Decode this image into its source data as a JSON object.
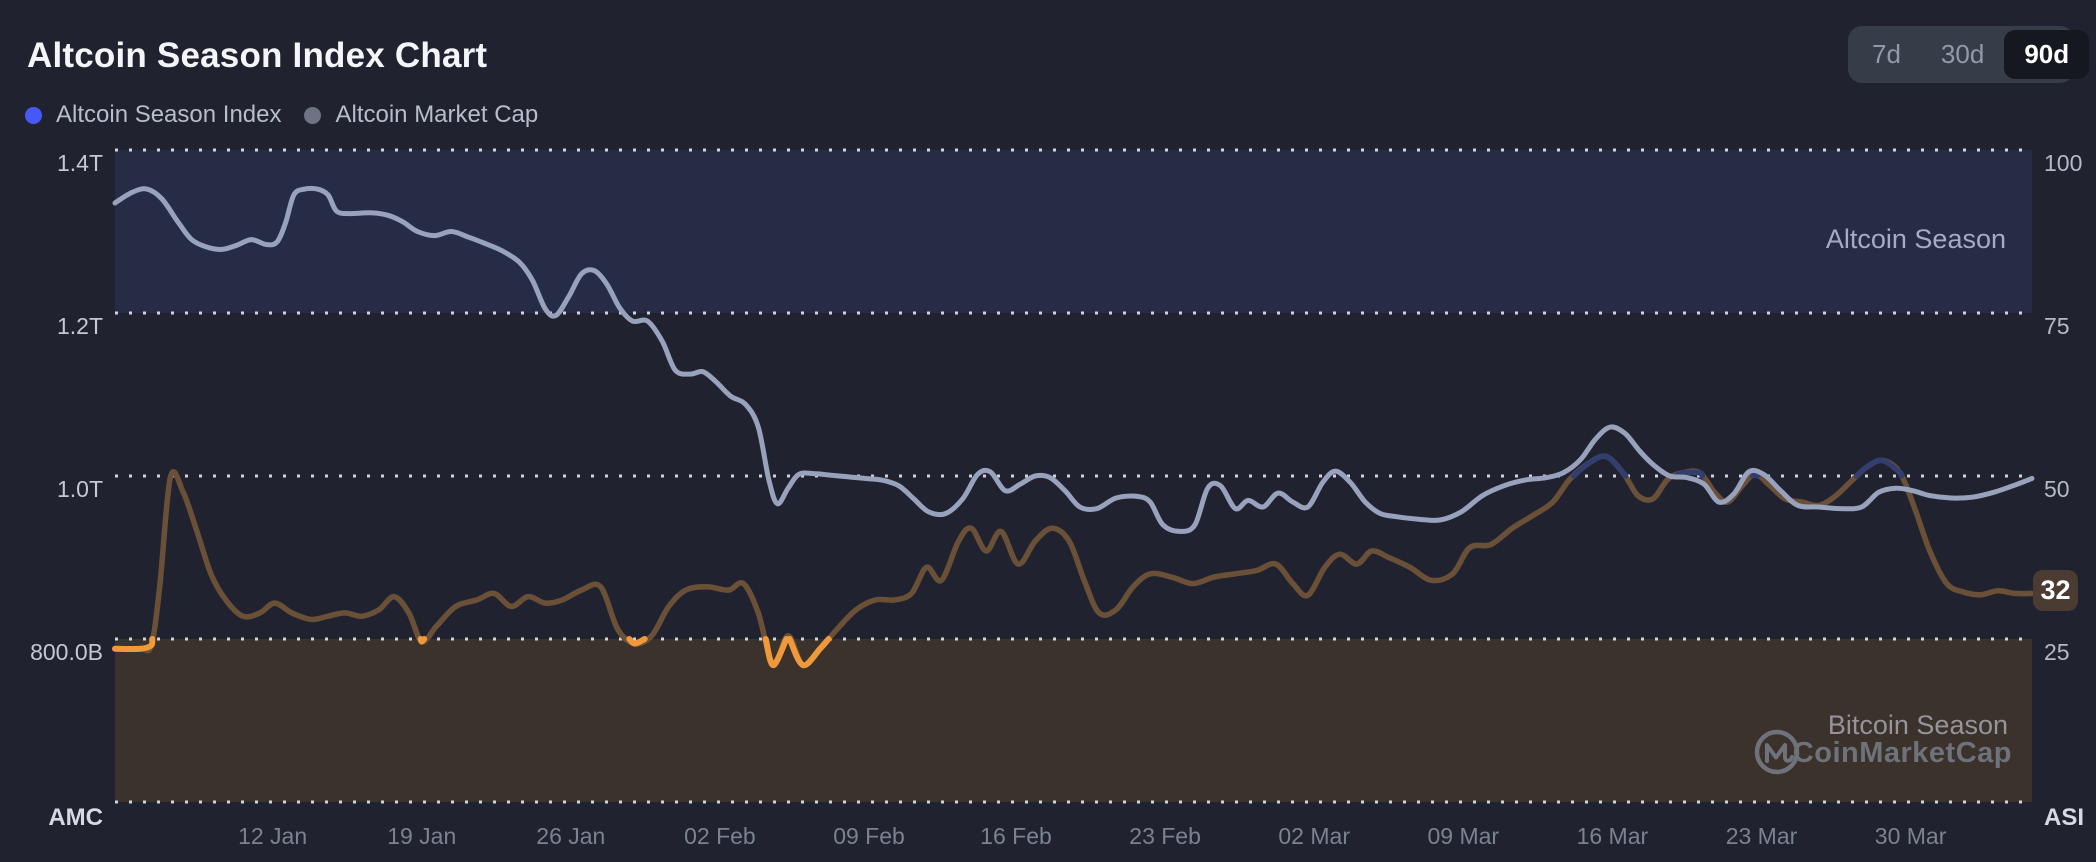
{
  "header": {
    "title": "Altcoin Season Index Chart",
    "ranges": [
      {
        "label": "7d",
        "selected": false
      },
      {
        "label": "30d",
        "selected": false
      },
      {
        "label": "90d",
        "selected": true
      }
    ]
  },
  "legend": [
    {
      "label": "Altcoin Season Index",
      "color": "#4659f7"
    },
    {
      "label": "Altcoin Market Cap",
      "color": "#6c7382"
    }
  ],
  "watermark": {
    "brand": "CoinMarketCap"
  },
  "chart_data": {
    "type": "line",
    "title": "Altcoin Season Index Chart",
    "grid": "horizontal-dotted",
    "legend_position": "top-left",
    "current_value": "32",
    "zones": [
      {
        "label": "Altcoin Season",
        "range": [
          75,
          100
        ],
        "color": "#272c46",
        "label_color": "#a5abc3"
      },
      {
        "label": "Bitcoin Season",
        "range": [
          0,
          25
        ],
        "color": "#3a322b",
        "label_color": "#96939a"
      }
    ],
    "right_axis": {
      "label": "ASI",
      "range": [
        0,
        100
      ],
      "ticks": [
        {
          "value": 100,
          "label": "100"
        },
        {
          "value": 75,
          "label": "75"
        },
        {
          "value": 50,
          "label": "50"
        },
        {
          "value": 25,
          "label": "25"
        }
      ]
    },
    "left_axis": {
      "label": "AMC",
      "unit": "USD",
      "range_trillions": [
        0.6,
        1.4
      ],
      "ticks": [
        {
          "value": 100,
          "label": "1.4T"
        },
        {
          "value": 75,
          "label": "1.2T"
        },
        {
          "value": 50,
          "label": "1.0T"
        },
        {
          "value": 25,
          "label": "800.0B"
        }
      ]
    },
    "x_ticks": [
      {
        "label": "12 Jan",
        "day": 7.4
      },
      {
        "label": "19 Jan",
        "day": 14.4
      },
      {
        "label": "26 Jan",
        "day": 21.4
      },
      {
        "label": "02 Feb",
        "day": 28.4
      },
      {
        "label": "09 Feb",
        "day": 35.4
      },
      {
        "label": "16 Feb",
        "day": 42.3
      },
      {
        "label": "23 Feb",
        "day": 49.3
      },
      {
        "label": "02 Mar",
        "day": 56.3
      },
      {
        "label": "09 Mar",
        "day": 63.3
      },
      {
        "label": "16 Mar",
        "day": 70.3
      },
      {
        "label": "23 Mar",
        "day": 77.3
      },
      {
        "label": "30 Mar",
        "day": 84.3
      }
    ],
    "x_domain_days": 90,
    "series": [
      {
        "name": "Altcoin Season Index",
        "axis": "right",
        "colors": {
          "low": "#f0993c",
          "mid": "#6b5038",
          "high": "#323f6e"
        },
        "thresholds": {
          "low": 25,
          "high": 50
        },
        "points": [
          [
            0,
            23.5
          ],
          [
            1.2,
            23.5
          ],
          [
            1.7,
            24
          ],
          [
            2.1,
            33
          ],
          [
            2.6,
            49.8
          ],
          [
            3.2,
            47.5
          ],
          [
            3.8,
            42
          ],
          [
            4.5,
            35
          ],
          [
            5.2,
            31
          ],
          [
            6,
            28.5
          ],
          [
            6.8,
            29
          ],
          [
            7.5,
            30.5
          ],
          [
            8.3,
            29
          ],
          [
            9.2,
            28
          ],
          [
            10,
            28.5
          ],
          [
            10.8,
            29
          ],
          [
            11.6,
            28.5
          ],
          [
            12.4,
            29.5
          ],
          [
            13.1,
            31.5
          ],
          [
            13.8,
            29
          ],
          [
            14.4,
            24.6
          ],
          [
            15.1,
            27
          ],
          [
            16,
            30
          ],
          [
            17,
            31
          ],
          [
            17.8,
            32
          ],
          [
            18.6,
            30
          ],
          [
            19.4,
            31.5
          ],
          [
            20.2,
            30.5
          ],
          [
            21,
            31
          ],
          [
            21.9,
            32.5
          ],
          [
            22.8,
            33
          ],
          [
            23.6,
            26.5
          ],
          [
            24.4,
            24.3
          ],
          [
            25.2,
            25.5
          ],
          [
            26,
            30
          ],
          [
            26.8,
            32.5
          ],
          [
            27.8,
            33
          ],
          [
            28.8,
            32.5
          ],
          [
            29.5,
            33.5
          ],
          [
            30.2,
            29
          ],
          [
            30.9,
            21
          ],
          [
            31.6,
            25.5
          ],
          [
            32.3,
            21
          ],
          [
            33.1,
            23.5
          ],
          [
            33.9,
            26.5
          ],
          [
            34.8,
            29.5
          ],
          [
            35.7,
            31
          ],
          [
            36.6,
            31
          ],
          [
            37.4,
            32
          ],
          [
            38.1,
            36
          ],
          [
            38.8,
            34
          ],
          [
            39.6,
            40
          ],
          [
            40.2,
            42
          ],
          [
            40.9,
            38.5
          ],
          [
            41.6,
            41.5
          ],
          [
            42.4,
            36.5
          ],
          [
            43.2,
            40
          ],
          [
            44,
            42
          ],
          [
            44.8,
            40
          ],
          [
            45.5,
            34
          ],
          [
            46.2,
            29
          ],
          [
            47,
            29.5
          ],
          [
            47.8,
            33
          ],
          [
            48.6,
            35
          ],
          [
            49.6,
            34.5
          ],
          [
            50.6,
            33.5
          ],
          [
            51.6,
            34.5
          ],
          [
            52.6,
            35
          ],
          [
            53.6,
            35.5
          ],
          [
            54.5,
            36.5
          ],
          [
            55.3,
            33.5
          ],
          [
            56,
            31.7
          ],
          [
            56.8,
            36
          ],
          [
            57.5,
            38
          ],
          [
            58.3,
            36.5
          ],
          [
            59,
            38.5
          ],
          [
            59.8,
            37.5
          ],
          [
            60.8,
            36
          ],
          [
            61.8,
            34
          ],
          [
            62.8,
            35
          ],
          [
            63.6,
            39
          ],
          [
            64.6,
            39.5
          ],
          [
            65.6,
            42
          ],
          [
            66.6,
            44
          ],
          [
            67.5,
            46
          ],
          [
            68.3,
            49.5
          ],
          [
            69.2,
            52
          ],
          [
            70,
            53
          ],
          [
            70.8,
            50.5
          ],
          [
            71.5,
            47
          ],
          [
            72.2,
            46.5
          ],
          [
            72.9,
            49.5
          ],
          [
            73.6,
            50.5
          ],
          [
            74.4,
            50.5
          ],
          [
            75.1,
            47.5
          ],
          [
            75.7,
            46
          ],
          [
            76.4,
            48.5
          ],
          [
            77,
            50.3
          ],
          [
            77.7,
            48.5
          ],
          [
            78.4,
            46.5
          ],
          [
            79.2,
            46
          ],
          [
            80,
            45.5
          ],
          [
            80.8,
            47
          ],
          [
            81.6,
            49.5
          ],
          [
            82.3,
            51.5
          ],
          [
            83,
            52.4
          ],
          [
            83.8,
            50.5
          ],
          [
            84.5,
            45
          ],
          [
            85.2,
            38.5
          ],
          [
            86,
            33.5
          ],
          [
            86.8,
            32.2
          ],
          [
            87.6,
            31.8
          ],
          [
            88.4,
            32.4
          ],
          [
            89.2,
            32
          ],
          [
            90,
            32
          ]
        ]
      },
      {
        "name": "Altcoin Market Cap",
        "axis": "left",
        "color": "#99a2bc",
        "unit": "trillions USD",
        "points": [
          [
            0,
            1.335
          ],
          [
            0.8,
            1.348
          ],
          [
            1.5,
            1.352
          ],
          [
            2.2,
            1.34
          ],
          [
            3,
            1.31
          ],
          [
            3.6,
            1.29
          ],
          [
            4.3,
            1.281
          ],
          [
            5,
            1.278
          ],
          [
            5.7,
            1.283
          ],
          [
            6.4,
            1.29
          ],
          [
            7.1,
            1.284
          ],
          [
            7.6,
            1.287
          ],
          [
            8,
            1.31
          ],
          [
            8.4,
            1.345
          ],
          [
            8.9,
            1.352
          ],
          [
            9.5,
            1.352
          ],
          [
            10,
            1.345
          ],
          [
            10.4,
            1.325
          ],
          [
            11,
            1.322
          ],
          [
            12,
            1.323
          ],
          [
            12.8,
            1.32
          ],
          [
            13.5,
            1.312
          ],
          [
            14.2,
            1.3
          ],
          [
            15,
            1.295
          ],
          [
            15.8,
            1.3
          ],
          [
            16.6,
            1.293
          ],
          [
            17.4,
            1.285
          ],
          [
            18.2,
            1.276
          ],
          [
            19,
            1.262
          ],
          [
            19.6,
            1.24
          ],
          [
            20.2,
            1.205
          ],
          [
            20.7,
            1.197
          ],
          [
            21.3,
            1.22
          ],
          [
            21.9,
            1.248
          ],
          [
            22.5,
            1.252
          ],
          [
            23.1,
            1.235
          ],
          [
            23.7,
            1.206
          ],
          [
            24.3,
            1.19
          ],
          [
            25,
            1.19
          ],
          [
            25.7,
            1.165
          ],
          [
            26.3,
            1.13
          ],
          [
            27,
            1.125
          ],
          [
            27.6,
            1.128
          ],
          [
            28.2,
            1.116
          ],
          [
            28.9,
            1.098
          ],
          [
            29.6,
            1.088
          ],
          [
            30.2,
            1.06
          ],
          [
            30.7,
            0.995
          ],
          [
            31.1,
            0.966
          ],
          [
            31.6,
            0.985
          ],
          [
            32.1,
            1.002
          ],
          [
            32.8,
            1.003
          ],
          [
            33.6,
            1.001
          ],
          [
            34.4,
            0.999
          ],
          [
            35.2,
            0.997
          ],
          [
            36,
            0.995
          ],
          [
            36.8,
            0.988
          ],
          [
            37.5,
            0.972
          ],
          [
            38.2,
            0.956
          ],
          [
            39,
            0.954
          ],
          [
            39.8,
            0.972
          ],
          [
            40.5,
            1.002
          ],
          [
            41.1,
            1.005
          ],
          [
            41.8,
            0.982
          ],
          [
            42.5,
            0.99
          ],
          [
            43.2,
            1.0
          ],
          [
            43.9,
            0.998
          ],
          [
            44.6,
            0.982
          ],
          [
            45.3,
            0.962
          ],
          [
            46.1,
            0.96
          ],
          [
            47,
            0.973
          ],
          [
            48,
            0.975
          ],
          [
            48.6,
            0.968
          ],
          [
            49.2,
            0.94
          ],
          [
            50,
            0.932
          ],
          [
            50.7,
            0.94
          ],
          [
            51.3,
            0.985
          ],
          [
            51.9,
            0.988
          ],
          [
            52.6,
            0.96
          ],
          [
            53.2,
            0.97
          ],
          [
            53.9,
            0.962
          ],
          [
            54.6,
            0.979
          ],
          [
            55.3,
            0.968
          ],
          [
            56,
            0.962
          ],
          [
            56.7,
            0.992
          ],
          [
            57.3,
            1.006
          ],
          [
            58,
            0.992
          ],
          [
            58.7,
            0.968
          ],
          [
            59.4,
            0.954
          ],
          [
            60.2,
            0.95
          ],
          [
            61.2,
            0.947
          ],
          [
            62.2,
            0.946
          ],
          [
            63.2,
            0.956
          ],
          [
            64.2,
            0.976
          ],
          [
            65.2,
            0.988
          ],
          [
            66.2,
            0.995
          ],
          [
            67.2,
            0.998
          ],
          [
            68,
            1.004
          ],
          [
            68.8,
            1.02
          ],
          [
            69.5,
            1.045
          ],
          [
            70.2,
            1.06
          ],
          [
            70.9,
            1.052
          ],
          [
            71.6,
            1.03
          ],
          [
            72.3,
            1.012
          ],
          [
            73,
            1.0
          ],
          [
            73.8,
            0.998
          ],
          [
            74.6,
            0.99
          ],
          [
            75.3,
            0.968
          ],
          [
            76,
            0.978
          ],
          [
            76.7,
            1.005
          ],
          [
            77.4,
            1.002
          ],
          [
            78.2,
            0.982
          ],
          [
            79,
            0.964
          ],
          [
            80,
            0.962
          ],
          [
            81,
            0.96
          ],
          [
            82,
            0.962
          ],
          [
            82.8,
            0.98
          ],
          [
            83.6,
            0.985
          ],
          [
            84.4,
            0.982
          ],
          [
            85.2,
            0.976
          ],
          [
            86.2,
            0.973
          ],
          [
            87.2,
            0.974
          ],
          [
            88.2,
            0.98
          ],
          [
            89.1,
            0.988
          ],
          [
            90,
            0.997
          ]
        ]
      }
    ]
  }
}
